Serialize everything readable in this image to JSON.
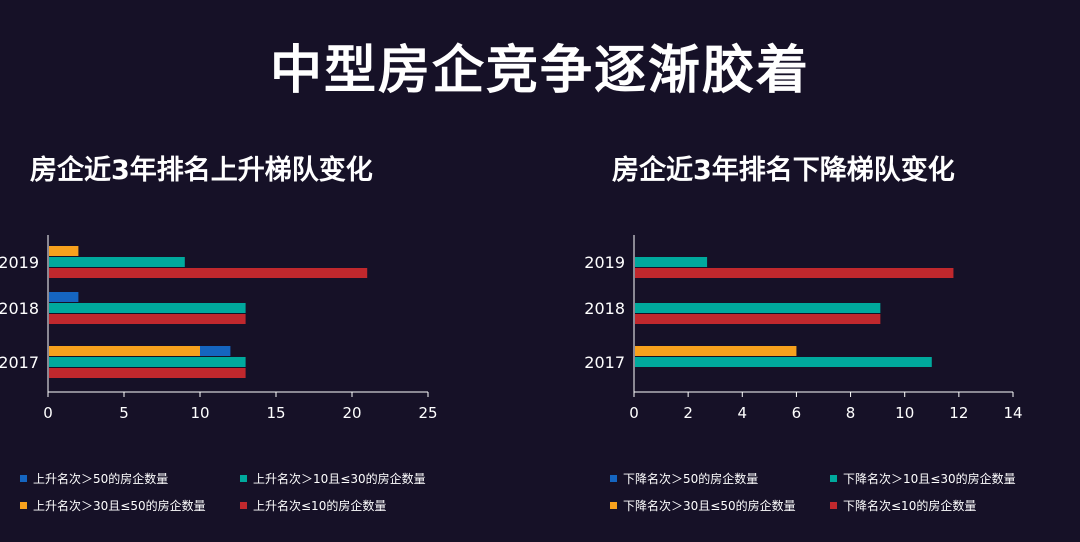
{
  "page": {
    "title": "中型房企竞争逐渐胶着"
  },
  "colors": {
    "blue": "#1565c0",
    "teal": "#00a99d",
    "orange": "#f7a11d",
    "red": "#c0282d",
    "axis": "#ffffff"
  },
  "chart_data": [
    {
      "type": "bar",
      "orientation": "horizontal",
      "title": "房企近3年排名上升梯队变化",
      "categories": [
        "2019",
        "2018",
        "2017"
      ],
      "xlim": [
        0,
        25
      ],
      "xticks": [
        "0",
        "5",
        "10",
        "15",
        "20",
        "25"
      ],
      "legend_position": "bottom",
      "series": [
        {
          "name": "上升名次＞50的房企数量",
          "color": "#1565c0",
          "values": [
            0,
            2,
            12
          ]
        },
        {
          "name": "上升名次＞30且≤50的房企数量",
          "color": "#f7a11d",
          "values": [
            2,
            0,
            10
          ]
        },
        {
          "name": "上升名次＞10且≤30的房企数量",
          "color": "#00a99d",
          "values": [
            9,
            13,
            13
          ]
        },
        {
          "name": "上升名次≤10的房企数量",
          "color": "#c0282d",
          "values": [
            21,
            13,
            13
          ]
        }
      ],
      "legend_order": [
        0,
        2,
        1,
        3
      ]
    },
    {
      "type": "bar",
      "orientation": "horizontal",
      "title": "房企近3年排名下降梯队变化",
      "categories": [
        "2019",
        "2018",
        "2017"
      ],
      "xlim": [
        0,
        14
      ],
      "xticks": [
        "0",
        "2",
        "4",
        "6",
        "8",
        "10",
        "12",
        "14"
      ],
      "legend_position": "bottom",
      "series": [
        {
          "name": "下降名次＞50的房企数量",
          "color": "#1565c0",
          "values": [
            0,
            0,
            0
          ]
        },
        {
          "name": "下降名次＞30且≤50的房企数量",
          "color": "#f7a11d",
          "values": [
            0,
            0,
            6
          ]
        },
        {
          "name": "下降名次＞10且≤30的房企数量",
          "color": "#00a99d",
          "values": [
            2.7,
            9.1,
            11
          ]
        },
        {
          "name": "下降名次≤10的房企数量",
          "color": "#c0282d",
          "values": [
            11.8,
            9.1,
            0
          ]
        }
      ],
      "legend_order": [
        0,
        2,
        1,
        3
      ]
    }
  ]
}
